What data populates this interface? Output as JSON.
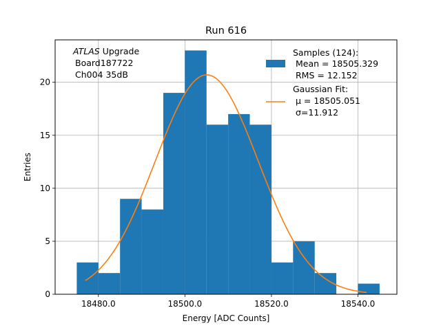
{
  "chart_data": {
    "type": "bar",
    "title": "Run 616",
    "xlabel": "Energy [ADC Counts]",
    "ylabel": "Entries",
    "xlim": [
      18470,
      18549
    ],
    "ylim": [
      0,
      24
    ],
    "grid": true,
    "xticks": [
      18480,
      18500,
      18520,
      18540
    ],
    "xtick_labels": [
      "18480.0",
      "18500.0",
      "18520.0",
      "18540.0"
    ],
    "yticks": [
      0,
      5,
      10,
      15,
      20
    ],
    "yticks_labels": [
      "0",
      "5",
      "10",
      "15",
      "20"
    ],
    "bin_edges": [
      18475,
      18480,
      18485,
      18490,
      18495,
      18500,
      18505,
      18510,
      18515,
      18520,
      18525,
      18530,
      18535,
      18540,
      18545
    ],
    "values": [
      3,
      2,
      9,
      8,
      19,
      23,
      16,
      17,
      16,
      3,
      5,
      2,
      0,
      1
    ],
    "series": [
      {
        "name": "Samples (124):",
        "type": "histogram"
      },
      {
        "name": "Gaussian Fit:",
        "type": "line",
        "mu": 18505.051,
        "sigma": 11.912,
        "peak": 20.7,
        "x_range": [
          18477,
          18542
        ]
      }
    ],
    "legend_placement": "top-right",
    "legend": {
      "samples_line1": "Samples (124):",
      "samples_line2": "Mean = 18505.329",
      "samples_line3": "RMS = 12.152",
      "fit_line1": "Gaussian Fit:",
      "fit_line2": "μ = 18505.051",
      "fit_line3": "σ=11.912"
    },
    "annotation": {
      "line1_italic": "ATLAS",
      "line1_rest": " Upgrade",
      "line2": "Board187722",
      "line3": "Ch004 35dB"
    },
    "colors": {
      "bars": "#1f77b4",
      "fit": "#ff7f0e",
      "grid": "#b0b0b0"
    }
  }
}
